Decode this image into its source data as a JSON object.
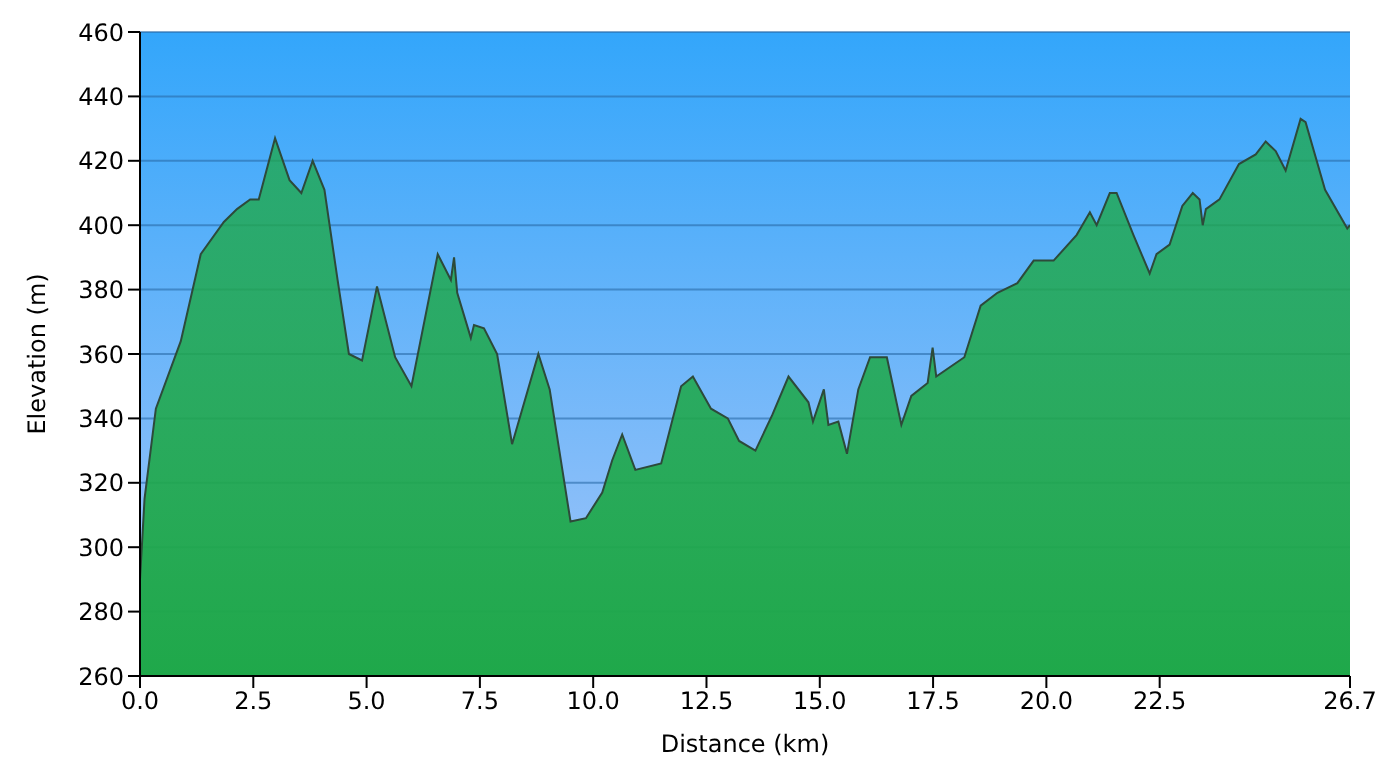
{
  "chart_data": {
    "type": "area",
    "xlabel": "Distance   (km)",
    "ylabel": "Elevation (m)",
    "x": [
      0,
      0.1,
      0.35,
      0.9,
      1.34,
      1.85,
      2.14,
      2.43,
      2.62,
      2.98,
      3.3,
      3.56,
      3.81,
      4.07,
      4.36,
      4.61,
      4.9,
      5.23,
      5.63,
      5.99,
      6.57,
      6.86,
      6.93,
      7.0,
      7.3,
      7.37,
      7.59,
      7.88,
      8.21,
      8.79,
      9.04,
      9.5,
      9.84,
      10.2,
      10.42,
      10.64,
      10.93,
      11.5,
      11.94,
      12.2,
      12.6,
      12.97,
      13.22,
      13.58,
      13.95,
      14.31,
      14.75,
      14.85,
      15.09,
      15.19,
      15.41,
      15.6,
      15.85,
      16.11,
      16.48,
      16.8,
      17.02,
      17.38,
      17.49,
      17.57,
      18.19,
      18.55,
      18.92,
      19.36,
      19.72,
      20.16,
      20.67,
      20.96,
      21.11,
      21.4,
      21.55,
      21.92,
      22.28,
      22.43,
      22.72,
      23.0,
      23.23,
      23.38,
      23.45,
      23.52,
      23.82,
      24.25,
      24.62,
      24.84,
      25.06,
      25.28,
      25.61,
      25.72,
      26.15,
      26.64,
      26.7
    ],
    "series": [
      {
        "color": "#1fa84a",
        "values": [
          290,
          315,
          343,
          364,
          391,
          401,
          405,
          408,
          408,
          427,
          414,
          410,
          420,
          411,
          383,
          360,
          358,
          381,
          359,
          350,
          391,
          383,
          390,
          379,
          365,
          369,
          368,
          360,
          332,
          360,
          349,
          308,
          309,
          317,
          327,
          335,
          324,
          326,
          350,
          353,
          343,
          340,
          333,
          330,
          341,
          353,
          345,
          339,
          349,
          338,
          339,
          329,
          349,
          359,
          359,
          338,
          347,
          351,
          362,
          353,
          359,
          375,
          379,
          382,
          389,
          389,
          397,
          404,
          400,
          410,
          410,
          397,
          385,
          391,
          394,
          406,
          410,
          408,
          400,
          405,
          408,
          419,
          422,
          426,
          423,
          417,
          433,
          432,
          411,
          399,
          400
        ]
      }
    ],
    "xlim": [
      0,
      26.7
    ],
    "xticks": [
      {
        "value": 0,
        "label": "0.0"
      },
      {
        "value": 2.5,
        "label": "2.5"
      },
      {
        "value": 5,
        "label": "5.0"
      },
      {
        "value": 7.5,
        "label": "7.5"
      },
      {
        "value": 10,
        "label": "10.0"
      },
      {
        "value": 12.5,
        "label": "12.5"
      },
      {
        "value": 15,
        "label": "15.0"
      },
      {
        "value": 17.5,
        "label": "17.5"
      },
      {
        "value": 20,
        "label": "20.0"
      },
      {
        "value": 22.5,
        "label": "22.5"
      },
      26.7
    ],
    "ylim": [
      260,
      460
    ],
    "yticks": [
      260,
      280,
      300,
      320,
      340,
      360,
      380,
      400,
      420,
      440,
      460
    ],
    "grid": "y",
    "legend": false
  }
}
